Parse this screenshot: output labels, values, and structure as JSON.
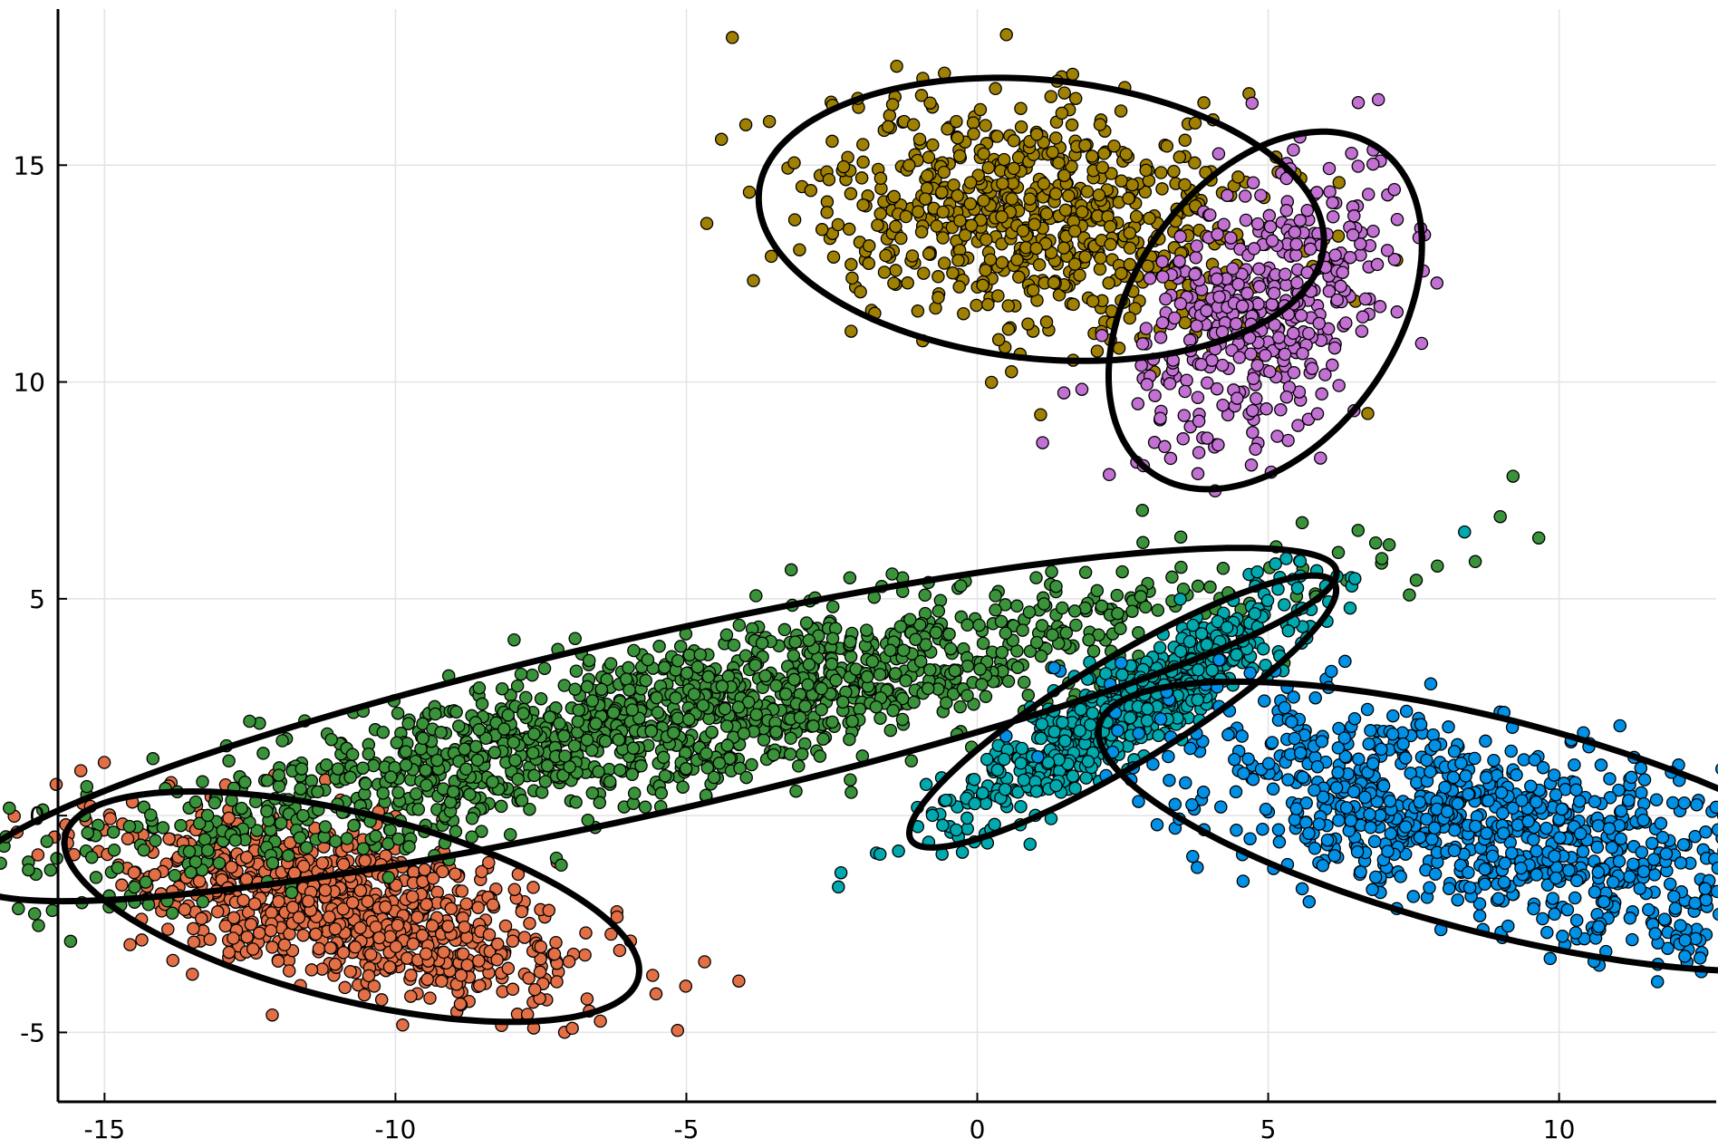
{
  "chart_data": {
    "type": "scatter",
    "title": "",
    "xlabel": "",
    "ylabel": "",
    "xlim": [
      -15.8,
      12.7
    ],
    "ylim": [
      -6.6,
      18.6
    ],
    "x_ticks": [
      -15,
      -10,
      -5,
      0,
      5,
      10
    ],
    "y_ticks": [
      -5,
      0,
      5,
      10,
      15
    ],
    "grid": true,
    "legend": "none",
    "colors": {
      "ellipse_stroke": "#000000",
      "marker_stroke": "#000000",
      "grid": "#e3e3e3",
      "axis": "#000000"
    },
    "clusters": [
      {
        "color": "#e26f46",
        "center": [
          -10.75,
          -2.1
        ],
        "semi_axes": [
          5.2,
          2.1
        ],
        "angle_deg": -20,
        "points": 900
      },
      {
        "color": "#3a923a",
        "center": [
          -5.6,
          2.1
        ],
        "semi_axes": [
          12.3,
          2.0
        ],
        "angle_deg": 17,
        "points": 1500
      },
      {
        "color": "#00a9ad",
        "center": [
          2.5,
          2.4
        ],
        "semi_axes": [
          4.7,
          1.1
        ],
        "angle_deg": 40,
        "points": 650
      },
      {
        "color": "#0091e6",
        "center": [
          8.9,
          -0.25
        ],
        "semi_axes": [
          7.2,
          2.4
        ],
        "angle_deg": -20,
        "points": 950
      },
      {
        "color": "#a08000",
        "center": [
          1.1,
          13.75
        ],
        "semi_axes": [
          4.9,
          3.2
        ],
        "angle_deg": -10,
        "points": 700
      },
      {
        "color": "#c271d2",
        "center": [
          4.95,
          11.65
        ],
        "semi_axes": [
          2.4,
          4.3
        ],
        "angle_deg": -20,
        "points": 420
      }
    ]
  }
}
